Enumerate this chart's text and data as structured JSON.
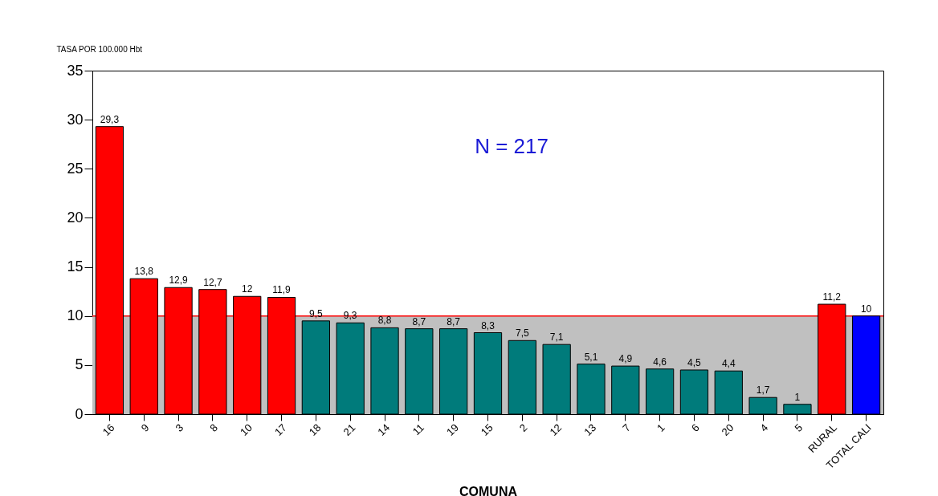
{
  "chart_data": {
    "type": "bar",
    "xlabel": "COMUNA",
    "ylabel": "TASA POR 100.000 Hbt",
    "categories": [
      "16",
      "9",
      "3",
      "8",
      "10",
      "17",
      "18",
      "21",
      "14",
      "11",
      "19",
      "15",
      "2",
      "12",
      "13",
      "7",
      "1",
      "6",
      "20",
      "4",
      "5",
      "RURAL",
      "TOTAL CALI"
    ],
    "values": [
      29.3,
      13.8,
      12.9,
      12.7,
      12,
      11.9,
      9.5,
      9.3,
      8.8,
      8.7,
      8.7,
      8.3,
      7.5,
      7.1,
      5.1,
      4.9,
      4.6,
      4.5,
      4.4,
      1.7,
      1,
      11.2,
      10
    ],
    "value_labels": [
      "29,3",
      "13,8",
      "12,9",
      "12,7",
      "12",
      "11,9",
      "9,5",
      "9,3",
      "8,8",
      "8,7",
      "8,7",
      "8,3",
      "7,5",
      "7,1",
      "5,1",
      "4,9",
      "4,6",
      "4,5",
      "4,4",
      "1,7",
      "1",
      "11,2",
      "10"
    ],
    "colors": [
      "#ff0000",
      "#ff0000",
      "#ff0000",
      "#ff0000",
      "#ff0000",
      "#ff0000",
      "#007b7b",
      "#007b7b",
      "#007b7b",
      "#007b7b",
      "#007b7b",
      "#007b7b",
      "#007b7b",
      "#007b7b",
      "#007b7b",
      "#007b7b",
      "#007b7b",
      "#007b7b",
      "#007b7b",
      "#007b7b",
      "#007b7b",
      "#ff0000",
      "#0000ff"
    ],
    "ylim": [
      0,
      35
    ],
    "yticks": [
      0,
      5,
      10,
      15,
      20,
      25,
      30,
      35
    ],
    "bands": [
      {
        "axis": "y",
        "from": 0,
        "to": 10,
        "color": "#c0c0c0"
      }
    ],
    "ref_lines": [
      {
        "axis": "y",
        "value": 10,
        "color": "#ff0000"
      }
    ],
    "annotations": [
      "N = 217"
    ]
  }
}
